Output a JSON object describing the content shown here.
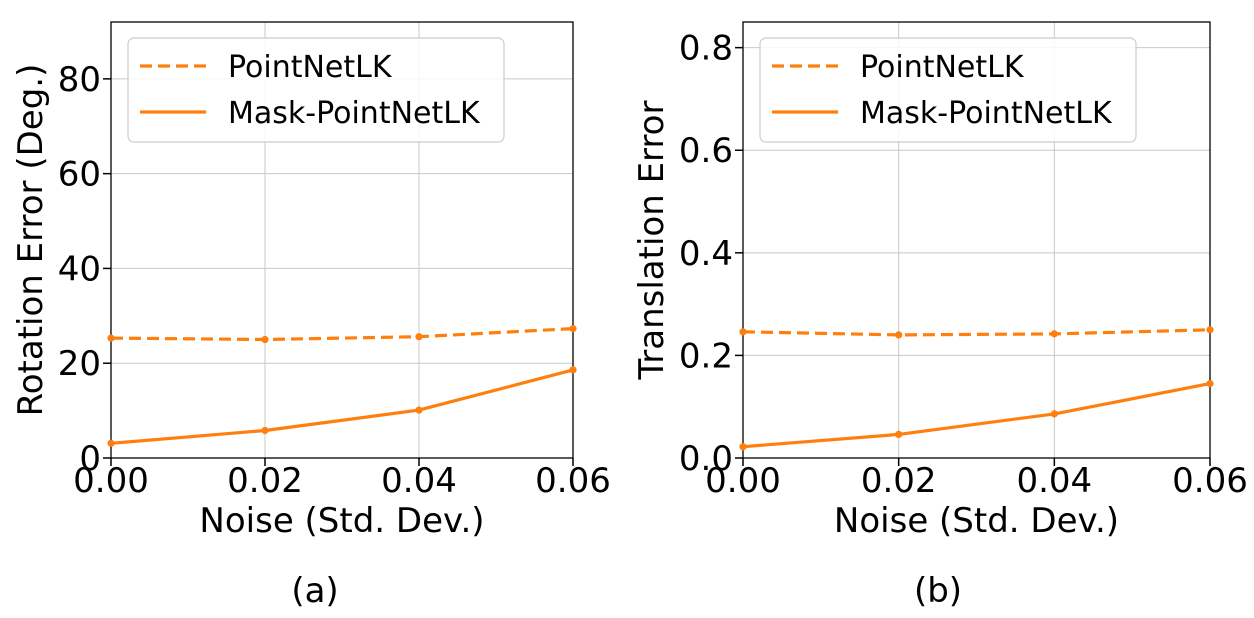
{
  "series_color": "#ff7f0e",
  "grid_color": "#c8c8c8",
  "chart_data": [
    {
      "type": "line",
      "panel_label": "(a)",
      "xlabel": "Noise (Std. Dev.)",
      "ylabel": "Rotation Error (Deg.)",
      "x": [
        0.0,
        0.02,
        0.04,
        0.06
      ],
      "xlim": [
        0.0,
        0.06
      ],
      "ylim": [
        0,
        92
      ],
      "xticks": [
        0.0,
        0.02,
        0.04,
        0.06
      ],
      "xtick_labels": [
        "0.00",
        "0.02",
        "0.04",
        "0.06"
      ],
      "yticks": [
        0,
        20,
        40,
        60,
        80
      ],
      "ytick_labels": [
        "0",
        "20",
        "40",
        "60",
        "80"
      ],
      "grid": true,
      "legend_position": "top-left",
      "series": [
        {
          "name": "PointNetLK",
          "style": "dashed",
          "values": [
            25.3,
            25.0,
            25.6,
            27.3
          ]
        },
        {
          "name": "Mask-PointNetLK",
          "style": "solid",
          "values": [
            3.1,
            5.8,
            10.1,
            18.6
          ]
        }
      ]
    },
    {
      "type": "line",
      "panel_label": "(b)",
      "xlabel": "Noise (Std. Dev.)",
      "ylabel": "Translation Error",
      "x": [
        0.0,
        0.02,
        0.04,
        0.06
      ],
      "xlim": [
        0.0,
        0.06
      ],
      "ylim": [
        0,
        0.85
      ],
      "xticks": [
        0.0,
        0.02,
        0.04,
        0.06
      ],
      "xtick_labels": [
        "0.00",
        "0.02",
        "0.04",
        "0.06"
      ],
      "yticks": [
        0.0,
        0.2,
        0.4,
        0.6,
        0.8
      ],
      "ytick_labels": [
        "0.0",
        "0.2",
        "0.4",
        "0.6",
        "0.8"
      ],
      "grid": true,
      "legend_position": "top-left",
      "series": [
        {
          "name": "PointNetLK",
          "style": "dashed",
          "values": [
            0.246,
            0.24,
            0.242,
            0.25
          ]
        },
        {
          "name": "Mask-PointNetLK",
          "style": "solid",
          "values": [
            0.022,
            0.046,
            0.086,
            0.145
          ]
        }
      ]
    }
  ]
}
